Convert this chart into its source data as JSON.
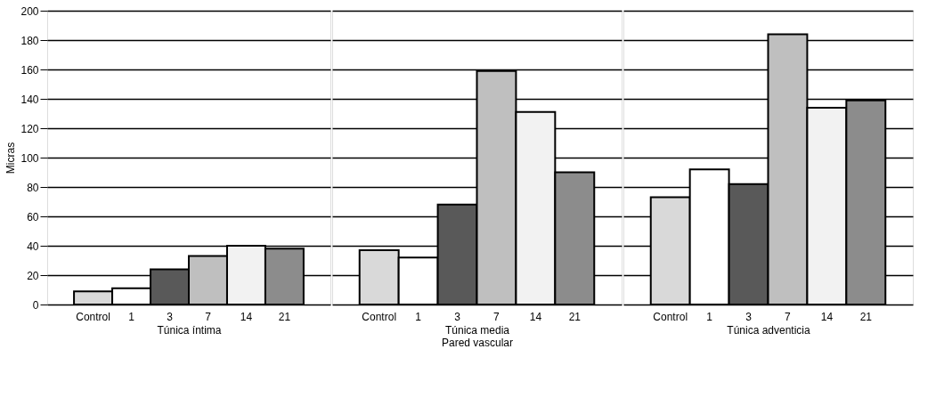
{
  "chart_data": [
    {
      "type": "bar",
      "categories": [
        "Control",
        "1",
        "3",
        "7",
        "14",
        "21"
      ],
      "values": [
        9,
        11,
        24,
        33,
        40,
        38
      ],
      "colors": [
        "#d9d9d9",
        "#ffffff",
        "#595959",
        "#bfbfbf",
        "#f2f2f2",
        "#8c8c8c"
      ],
      "xlabel": "Túnica íntima",
      "ylabel": "Micras",
      "ylim": [
        0,
        200
      ],
      "yticks": [
        0,
        20,
        40,
        60,
        80,
        100,
        120,
        140,
        160,
        180,
        200
      ],
      "grid": "y"
    },
    {
      "type": "bar",
      "categories": [
        "Control",
        "1",
        "3",
        "7",
        "14",
        "21"
      ],
      "values": [
        37,
        32,
        68,
        159,
        131,
        90
      ],
      "colors": [
        "#d9d9d9",
        "#ffffff",
        "#595959",
        "#bfbfbf",
        "#f2f2f2",
        "#8c8c8c"
      ],
      "xlabel": "Túnica media",
      "annotations": [
        "Pared vascular"
      ],
      "ylim": [
        0,
        200
      ],
      "yticks": [
        0,
        20,
        40,
        60,
        80,
        100,
        120,
        140,
        160,
        180,
        200
      ],
      "grid": "y",
      "tick_labels": "x"
    },
    {
      "type": "bar",
      "categories": [
        "Control",
        "1",
        "3",
        "7",
        "14",
        "21"
      ],
      "values": [
        73,
        92,
        82,
        184,
        134,
        139
      ],
      "colors": [
        "#d9d9d9",
        "#ffffff",
        "#595959",
        "#bfbfbf",
        "#f2f2f2",
        "#8c8c8c"
      ],
      "xlabel": "Túnica adventicia",
      "ylim": [
        0,
        200
      ],
      "yticks": [
        0,
        20,
        40,
        60,
        80,
        100,
        120,
        140,
        160,
        180,
        200
      ],
      "grid": "y",
      "tick_labels": "x"
    }
  ]
}
